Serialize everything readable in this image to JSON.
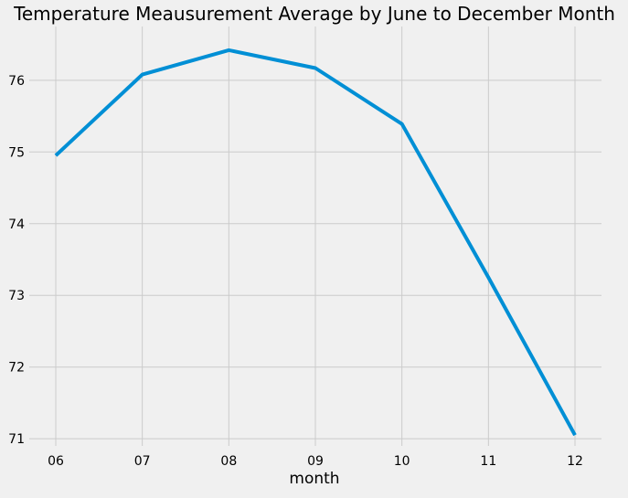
{
  "chart_data": {
    "type": "line",
    "title": "Temperature Meausurement Average by June to December Month",
    "xlabel": "month",
    "ylabel": "",
    "categories": [
      "06",
      "07",
      "08",
      "09",
      "10",
      "11",
      "12"
    ],
    "series": [
      {
        "values": [
          74.95,
          76.08,
          76.42,
          76.17,
          75.39,
          73.25,
          71.05
        ]
      }
    ],
    "ylim": [
      70.9,
      76.75
    ],
    "yticks": [
      71,
      72,
      73,
      74,
      75,
      76
    ],
    "grid": true,
    "legend": "none",
    "colors": {
      "line": "#008fd5",
      "grid": "#cbcbcb",
      "background": "#f0f0f0"
    }
  }
}
